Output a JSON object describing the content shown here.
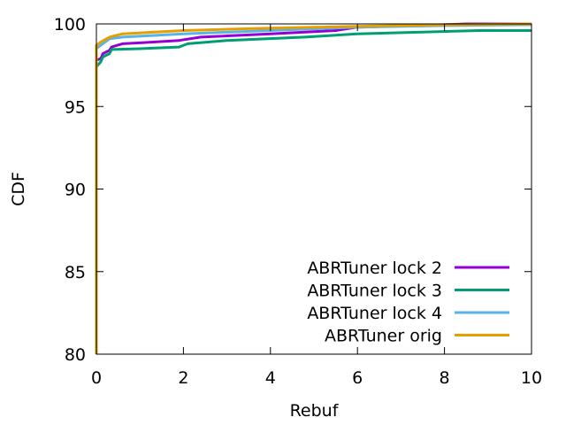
{
  "chart_data": {
    "type": "line",
    "xlabel": "Rebuf",
    "ylabel": "CDF",
    "xlim": [
      0,
      10
    ],
    "ylim": [
      80,
      100
    ],
    "xticks": [
      0,
      2,
      4,
      6,
      8,
      10
    ],
    "yticks": [
      80,
      85,
      90,
      95,
      100
    ],
    "grid": false,
    "legend_position": "bottom-right",
    "series": [
      {
        "name": "ABRTuner lock 2",
        "color": "#9400d3",
        "points": [
          [
            0,
            80
          ],
          [
            0,
            97.8
          ],
          [
            0.1,
            97.9
          ],
          [
            0.15,
            98.2
          ],
          [
            0.3,
            98.4
          ],
          [
            0.35,
            98.6
          ],
          [
            0.6,
            98.8
          ],
          [
            1.0,
            98.85
          ],
          [
            1.9,
            99.0
          ],
          [
            2.4,
            99.2
          ],
          [
            4.0,
            99.4
          ],
          [
            5.5,
            99.6
          ],
          [
            6.0,
            99.8
          ],
          [
            8.0,
            99.95
          ],
          [
            8.5,
            100
          ],
          [
            10,
            100
          ]
        ]
      },
      {
        "name": "ABRTuner lock 3",
        "color": "#009e73",
        "points": [
          [
            0,
            80
          ],
          [
            0,
            97.4
          ],
          [
            0.1,
            97.7
          ],
          [
            0.15,
            98.0
          ],
          [
            0.3,
            98.2
          ],
          [
            0.35,
            98.45
          ],
          [
            1.0,
            98.5
          ],
          [
            1.9,
            98.6
          ],
          [
            2.1,
            98.8
          ],
          [
            3.0,
            99.0
          ],
          [
            4.8,
            99.2
          ],
          [
            6.0,
            99.4
          ],
          [
            8.8,
            99.6
          ],
          [
            10,
            99.6
          ]
        ]
      },
      {
        "name": "ABRTuner lock 4",
        "color": "#56b4e9",
        "points": [
          [
            0,
            80
          ],
          [
            0,
            98.5
          ],
          [
            0.1,
            98.7
          ],
          [
            0.3,
            99.1
          ],
          [
            0.6,
            99.2
          ],
          [
            2.0,
            99.4
          ],
          [
            4.0,
            99.6
          ],
          [
            6.0,
            99.8
          ],
          [
            8.0,
            99.9
          ],
          [
            10,
            99.95
          ]
        ]
      },
      {
        "name": "ABRTuner orig",
        "color": "#e69f00",
        "points": [
          [
            0,
            80
          ],
          [
            0,
            98.7
          ],
          [
            0.1,
            98.9
          ],
          [
            0.3,
            99.2
          ],
          [
            0.6,
            99.4
          ],
          [
            2.0,
            99.6
          ],
          [
            4.0,
            99.75
          ],
          [
            6.0,
            99.85
          ],
          [
            8.0,
            99.95
          ],
          [
            10,
            100
          ]
        ]
      }
    ]
  }
}
